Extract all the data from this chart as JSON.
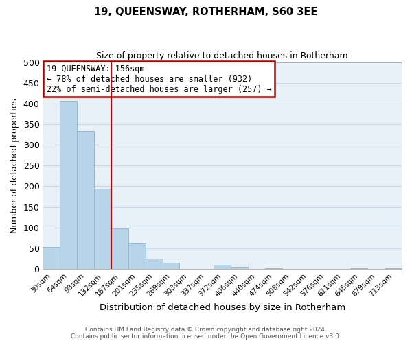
{
  "title": "19, QUEENSWAY, ROTHERHAM, S60 3EE",
  "subtitle": "Size of property relative to detached houses in Rotherham",
  "xlabel": "Distribution of detached houses by size in Rotherham",
  "ylabel": "Number of detached properties",
  "bar_labels": [
    "30sqm",
    "64sqm",
    "98sqm",
    "132sqm",
    "167sqm",
    "201sqm",
    "235sqm",
    "269sqm",
    "303sqm",
    "337sqm",
    "372sqm",
    "406sqm",
    "440sqm",
    "474sqm",
    "508sqm",
    "542sqm",
    "576sqm",
    "611sqm",
    "645sqm",
    "679sqm",
    "713sqm"
  ],
  "bar_values": [
    53,
    406,
    334,
    194,
    97,
    63,
    25,
    15,
    0,
    0,
    10,
    5,
    0,
    2,
    0,
    0,
    0,
    0,
    2,
    0,
    2
  ],
  "bar_color": "#b8d4e8",
  "bar_edge_color": "#93b8d0",
  "vline_color": "#cc0000",
  "vline_index": 3.5,
  "ylim": [
    0,
    500
  ],
  "yticks": [
    0,
    50,
    100,
    150,
    200,
    250,
    300,
    350,
    400,
    450,
    500
  ],
  "annotation_title": "19 QUEENSWAY: 156sqm",
  "annotation_line1": "← 78% of detached houses are smaller (932)",
  "annotation_line2": "22% of semi-detached houses are larger (257) →",
  "annotation_box_color": "#ffffff",
  "annotation_box_edge": "#aa0000",
  "footer_line1": "Contains HM Land Registry data © Crown copyright and database right 2024.",
  "footer_line2": "Contains public sector information licensed under the Open Government Licence v3.0.",
  "background_color": "#ffffff",
  "axes_bg_color": "#e8f0f8",
  "grid_color": "#c8d8e8"
}
